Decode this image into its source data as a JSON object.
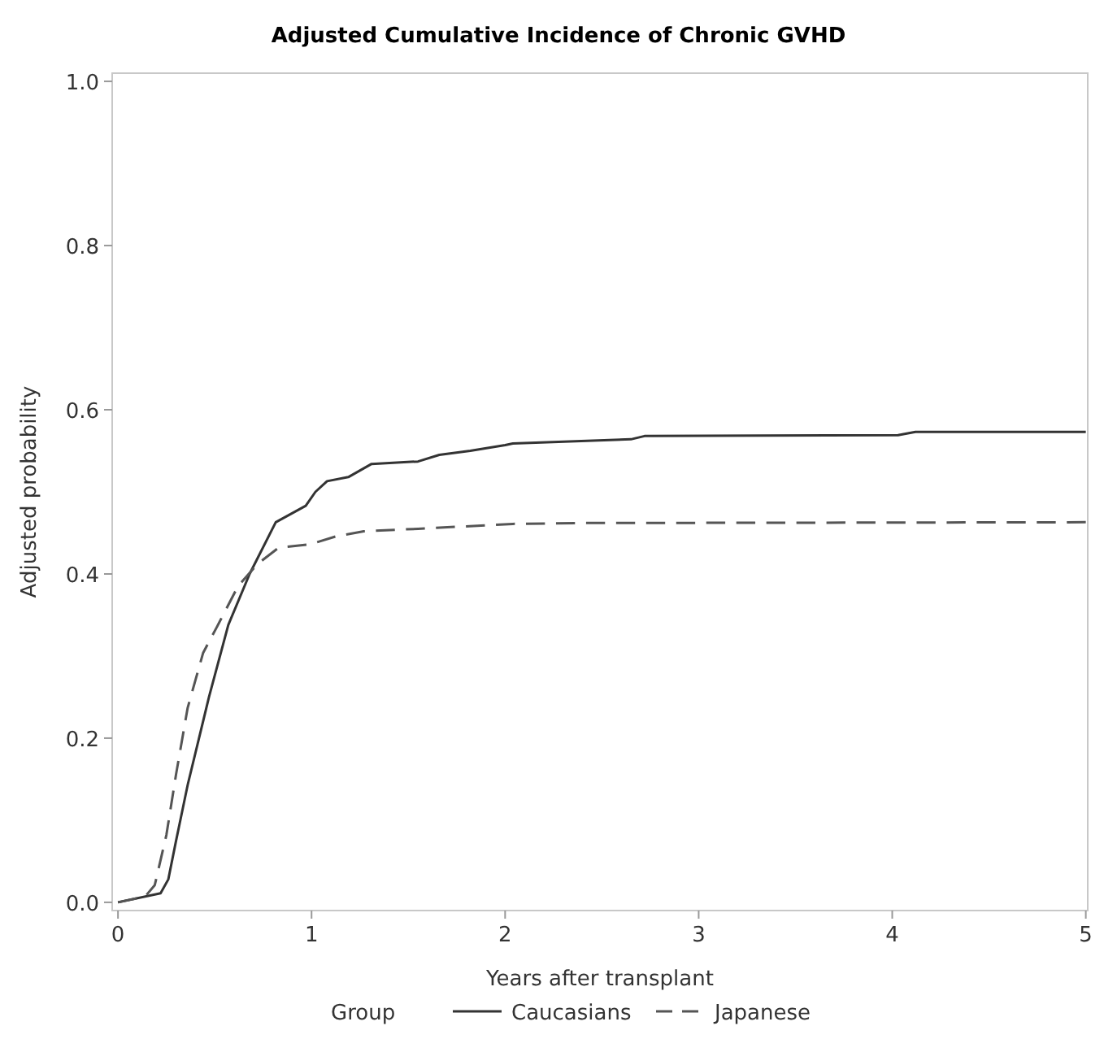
{
  "chart_data": {
    "type": "line",
    "title": "Adjusted Cumulative Incidence of Chronic GVHD",
    "xlabel": "Years after transplant",
    "ylabel": "Adjusted probability",
    "legend_title": "Group",
    "legend": "bottom",
    "grid": false,
    "marker": "none",
    "xlim": [
      -0.03,
      5.01
    ],
    "xticks": [
      0,
      1,
      2,
      3,
      4,
      5
    ],
    "ylim": [
      -0.01,
      1.01
    ],
    "yticks": [
      {
        "value": 0,
        "label": "0.0"
      },
      {
        "value": 0.2,
        "label": "0.2"
      },
      {
        "value": 0.4,
        "label": "0.4"
      },
      {
        "value": 0.6,
        "label": "0.6"
      },
      {
        "value": 0.8,
        "label": "0.8"
      },
      {
        "value": 1,
        "label": "1.0"
      }
    ],
    "series": [
      {
        "name": "Caucasians",
        "color": "#333333",
        "line_style": "solid",
        "x": [
          0,
          0.22,
          0.26,
          0.3,
          0.36,
          0.47,
          0.57,
          0.68,
          0.815,
          0.97,
          1.02,
          1.08,
          1.19,
          1.31,
          1.55,
          1.66,
          1.82,
          2.0,
          2.04,
          2.65,
          2.72,
          4.03,
          4.12,
          5.0
        ],
        "values": [
          0,
          0.011,
          0.028,
          0.075,
          0.143,
          0.25,
          0.338,
          0.4,
          0.463,
          0.483,
          0.5,
          0.513,
          0.518,
          0.534,
          0.537,
          0.545,
          0.55,
          0.557,
          0.559,
          0.564,
          0.568,
          0.569,
          0.573,
          0.573
        ]
      },
      {
        "name": "Japanese",
        "color": "#555555",
        "line_style": "dashed",
        "x": [
          0,
          0.14,
          0.19,
          0.25,
          0.3,
          0.36,
          0.44,
          0.51,
          0.62,
          0.72,
          0.83,
          0.99,
          1.13,
          1.27,
          1.55,
          2.04,
          2.38,
          5.0
        ],
        "values": [
          0,
          0.007,
          0.021,
          0.082,
          0.156,
          0.237,
          0.304,
          0.335,
          0.385,
          0.412,
          0.432,
          0.436,
          0.446,
          0.452,
          0.455,
          0.461,
          0.462,
          0.463
        ]
      }
    ]
  }
}
